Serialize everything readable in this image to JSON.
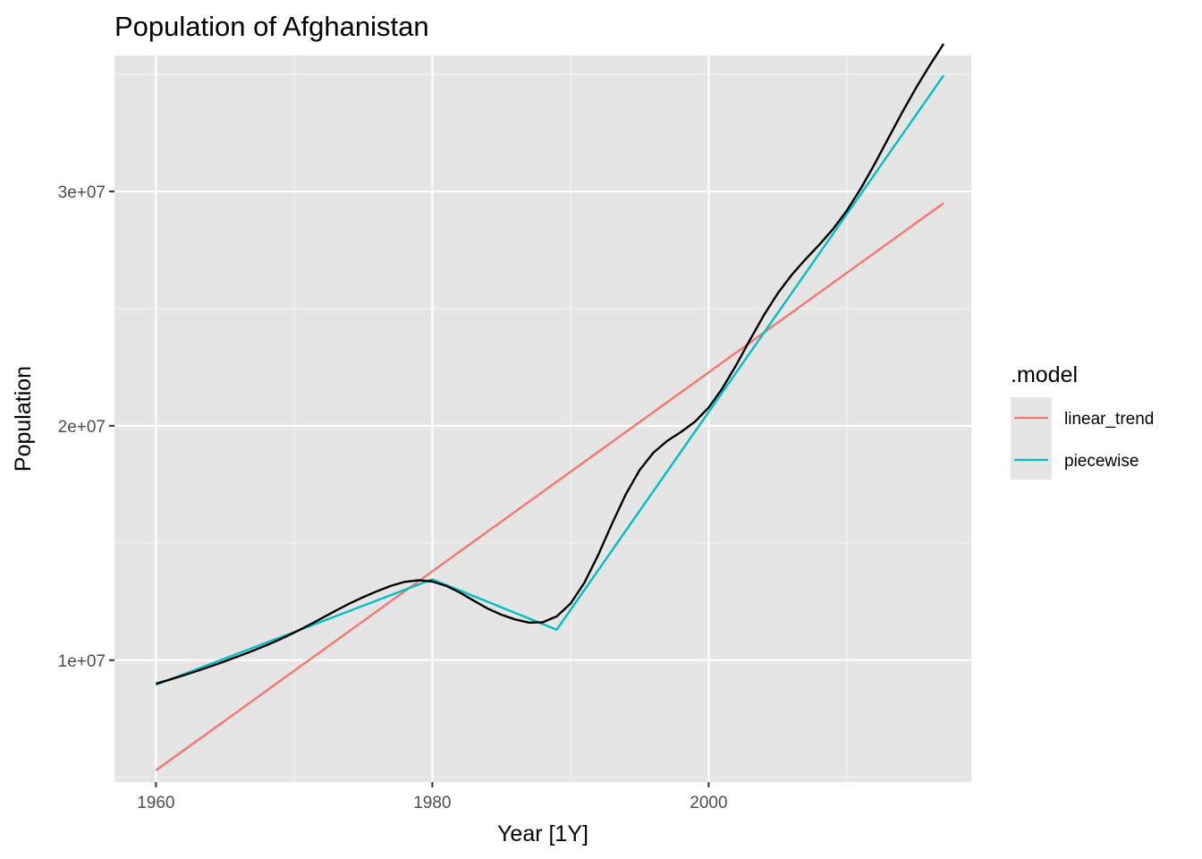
{
  "chart_data": {
    "type": "line",
    "title": "Population of Afghanistan",
    "xlabel": "Year [1Y]",
    "ylabel": "Population",
    "xlim": [
      1957,
      2019
    ],
    "ylim": [
      4800000,
      35800000
    ],
    "x_ticks": [
      1960,
      1980,
      2000
    ],
    "x_tick_labels": [
      "1960",
      "1980",
      "2000"
    ],
    "x_minor_ticks": [
      1970,
      1990,
      2010
    ],
    "y_ticks": [
      10000000,
      20000000,
      30000000
    ],
    "y_tick_labels": [
      "1e+07",
      "2e+07",
      "3e+07"
    ],
    "y_minor_ticks": [
      5000000,
      15000000,
      25000000,
      35000000
    ],
    "grid": true,
    "background": "#e5e5e5",
    "legend": {
      "title": ".model",
      "position": "right",
      "entries": [
        {
          "label": "linear_trend",
          "color": "#f8766d"
        },
        {
          "label": "piecewise",
          "color": "#00bfc4"
        }
      ]
    },
    "series": [
      {
        "role": "observed",
        "color": "#000000",
        "x": [
          1960,
          1961,
          1962,
          1963,
          1964,
          1965,
          1966,
          1967,
          1968,
          1969,
          1970,
          1971,
          1972,
          1973,
          1974,
          1975,
          1976,
          1977,
          1978,
          1979,
          1980,
          1981,
          1982,
          1983,
          1984,
          1985,
          1986,
          1987,
          1988,
          1989,
          1990,
          1991,
          1992,
          1993,
          1994,
          1995,
          1996,
          1997,
          1998,
          1999,
          2000,
          2001,
          2002,
          2003,
          2004,
          2005,
          2006,
          2007,
          2008,
          2009,
          2010,
          2011,
          2012,
          2013,
          2014,
          2015,
          2016,
          2017
        ],
        "values": [
          8996967,
          9169406,
          9351442,
          9543200,
          9744772,
          9956318,
          10174840,
          10399936,
          10637064,
          10893772,
          11173654,
          11475450,
          11791222,
          12108963,
          12412960,
          12689164,
          12943093,
          13171294,
          13341199,
          13411060,
          13356500,
          13171679,
          12882518,
          12537732,
          12204306,
          11938204,
          11736177,
          11604538,
          11618008,
          11868873,
          12412311,
          13299016,
          14485543,
          15816601,
          17075728,
          18110662,
          18853444,
          19357126,
          19737770,
          20170847,
          20779957,
          21606992,
          22600774,
          23680871,
          24726689,
          25654274,
          26433058,
          27100542,
          27722281,
          28394806,
          29185511,
          30117411,
          31161378,
          32269592,
          33370804,
          34413603,
          35383028,
          36296111
        ]
      },
      {
        "name": "linear_trend",
        "color": "#f8766d",
        "x": [
          1960,
          2017
        ],
        "values": [
          5300000,
          29500000
        ]
      },
      {
        "name": "piecewise",
        "color": "#00bfc4",
        "x": [
          1960,
          1980,
          1989,
          2017
        ],
        "values": [
          8950000,
          13450000,
          11300000,
          34950000
        ]
      }
    ]
  }
}
